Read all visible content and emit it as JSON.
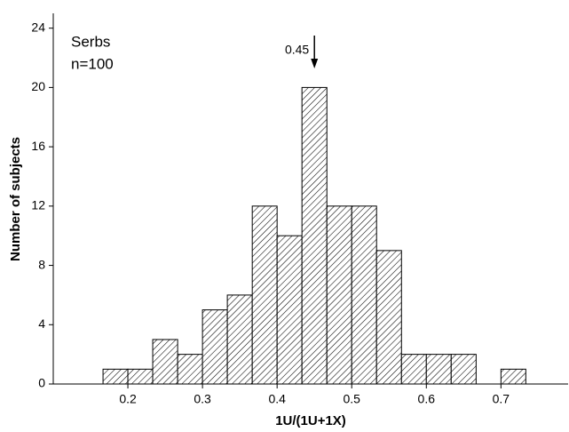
{
  "chart_data": {
    "type": "histogram",
    "x_label": "1U/(1U+1X)",
    "y_label": "Number of subjects",
    "bins": [
      0.1667,
      0.2,
      0.2333,
      0.2667,
      0.3,
      0.3333,
      0.3667,
      0.4,
      0.4333,
      0.4667,
      0.5,
      0.5333,
      0.5667,
      0.6,
      0.6333,
      0.6667,
      0.7,
      0.7333
    ],
    "values": [
      1,
      1,
      3,
      2,
      5,
      6,
      12,
      10,
      20,
      12,
      12,
      9,
      2,
      2,
      2,
      0,
      1
    ],
    "xlim": [
      0.1,
      0.79
    ],
    "xticks": [
      0.2,
      0.3,
      0.4,
      0.5,
      0.6,
      0.7
    ],
    "ylim": [
      0,
      25
    ],
    "yticks": [
      0,
      4,
      8,
      12,
      16,
      20,
      24
    ],
    "annotations": [
      {
        "text": "Serbs"
      },
      {
        "text": "n=100"
      },
      {
        "text": "0.45",
        "x": 0.45
      }
    ]
  }
}
